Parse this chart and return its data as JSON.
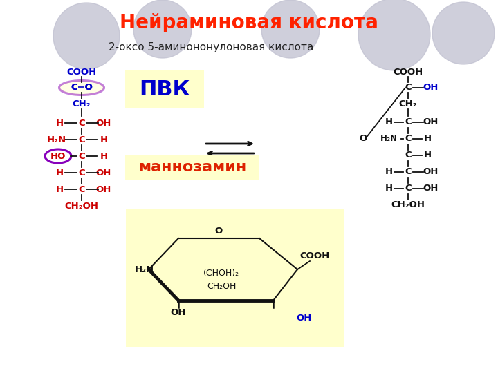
{
  "title": "Нейраминовая кислота",
  "subtitle": "2-оксо 5-аминононулоновая кислота",
  "title_color": "#ff2200",
  "subtitle_color": "#222222",
  "pvk_label": "ПВК",
  "mannozamin_label": "маннозамин",
  "label_color_blue": "#0000cc",
  "label_color_red": "#cc0000",
  "label_color_black": "#111111",
  "bg_color": "#ffffff",
  "highlight_yellow": "#ffffcc",
  "circle_color": "#c0c0d0",
  "ellipse_color": "#8800bb"
}
